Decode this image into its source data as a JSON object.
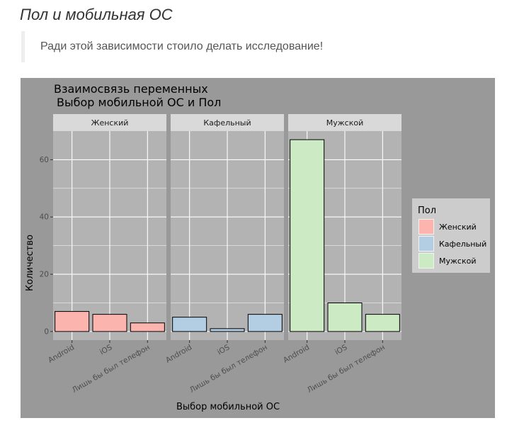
{
  "page": {
    "heading": "Пол и мобильная ОС",
    "quote": "Ради этой зависимости стоило делать исследование!"
  },
  "chart_data": {
    "type": "bar",
    "title_line1": "Взаимосвязь переменных",
    "title_line2": "Выбор мобильной ОС и Пол",
    "xlabel": "Выбор мобильной ОС",
    "ylabel": "Количество",
    "categories": [
      "Android",
      "iOS",
      "Лишь бы был телефон"
    ],
    "ylim": [
      -3,
      70
    ],
    "yticks": [
      0,
      20,
      40,
      60
    ],
    "facets": [
      {
        "name": "Женский",
        "color": "#fbb4ae",
        "values": [
          7,
          6,
          3
        ]
      },
      {
        "name": "Кафельный",
        "color": "#b3cde3",
        "values": [
          5,
          1,
          6
        ]
      },
      {
        "name": "Мужской",
        "color": "#ccebc5",
        "values": [
          67,
          10,
          6
        ]
      }
    ],
    "legend": {
      "title": "Пол",
      "position": "right",
      "items": [
        {
          "label": "Женский",
          "color": "#fbb4ae"
        },
        {
          "label": "Кафельный",
          "color": "#b3cde3"
        },
        {
          "label": "Мужской",
          "color": "#ccebc5"
        }
      ]
    },
    "grid": true,
    "colors": {
      "plot_background": "#999999",
      "panel_background": "#b3b3b3",
      "strip_background": "#d9d9d9",
      "gridline": "#ffffff",
      "legend_background": "#cccccc"
    }
  }
}
